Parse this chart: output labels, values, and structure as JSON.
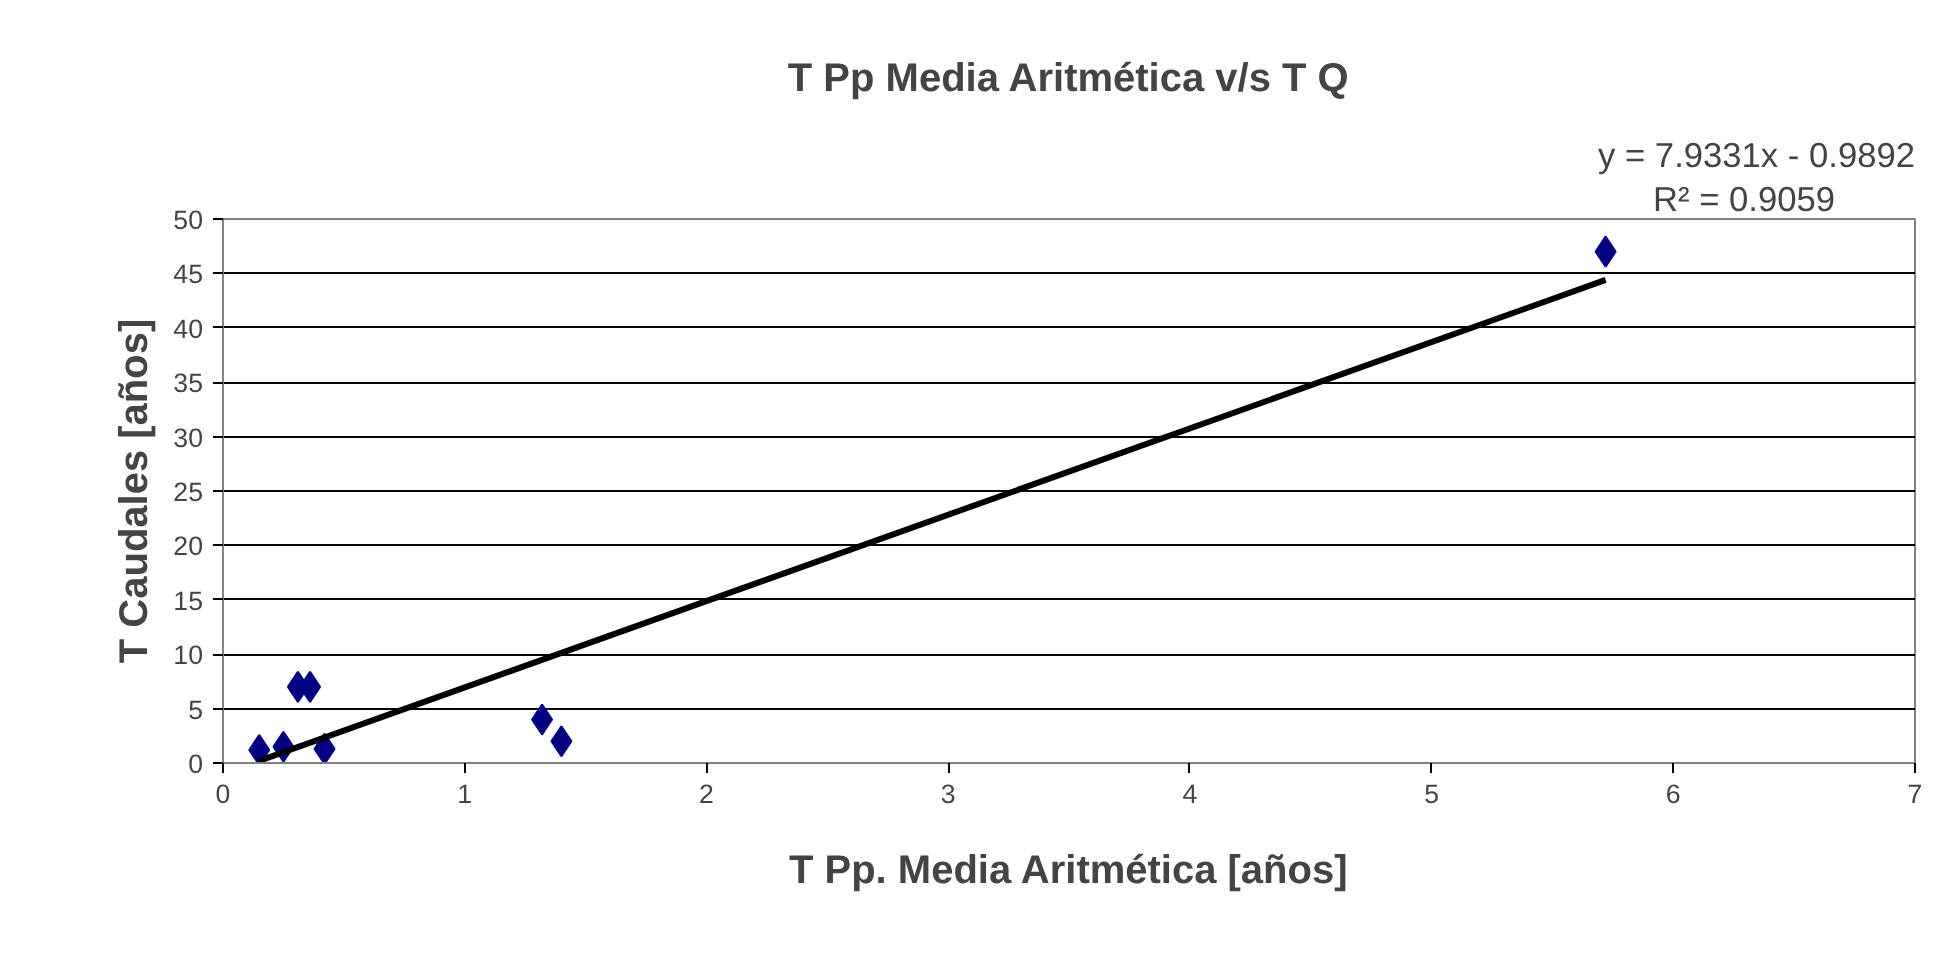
{
  "chart_data": {
    "type": "scatter",
    "title": "T Pp Media Aritmética v/s T Q",
    "xlabel": "T Pp. Media Aritmética [años]",
    "ylabel": "T Caudales [años]",
    "annotations": [
      "y = 7.9331x - 0.9892",
      "R² = 0.9059"
    ],
    "xlim": [
      0,
      7
    ],
    "xticks": [
      0,
      1,
      2,
      3,
      4,
      5,
      6,
      7
    ],
    "ylim": [
      0,
      50
    ],
    "yticks": [
      0,
      5,
      10,
      15,
      20,
      25,
      30,
      35,
      40,
      45,
      50
    ],
    "grid": "y",
    "series": [
      {
        "type": "scatter",
        "color": "#000080",
        "marker": "diamond",
        "x": [
          0.15,
          0.25,
          0.31,
          0.36,
          0.42,
          1.32,
          1.4,
          5.72
        ],
        "values": [
          1.2,
          1.5,
          7,
          7,
          1.3,
          4,
          2,
          47
        ]
      },
      {
        "type": "line",
        "color": "#000000",
        "x": [
          0.15,
          5.72
        ],
        "values": [
          0.2,
          44.4
        ]
      }
    ]
  }
}
